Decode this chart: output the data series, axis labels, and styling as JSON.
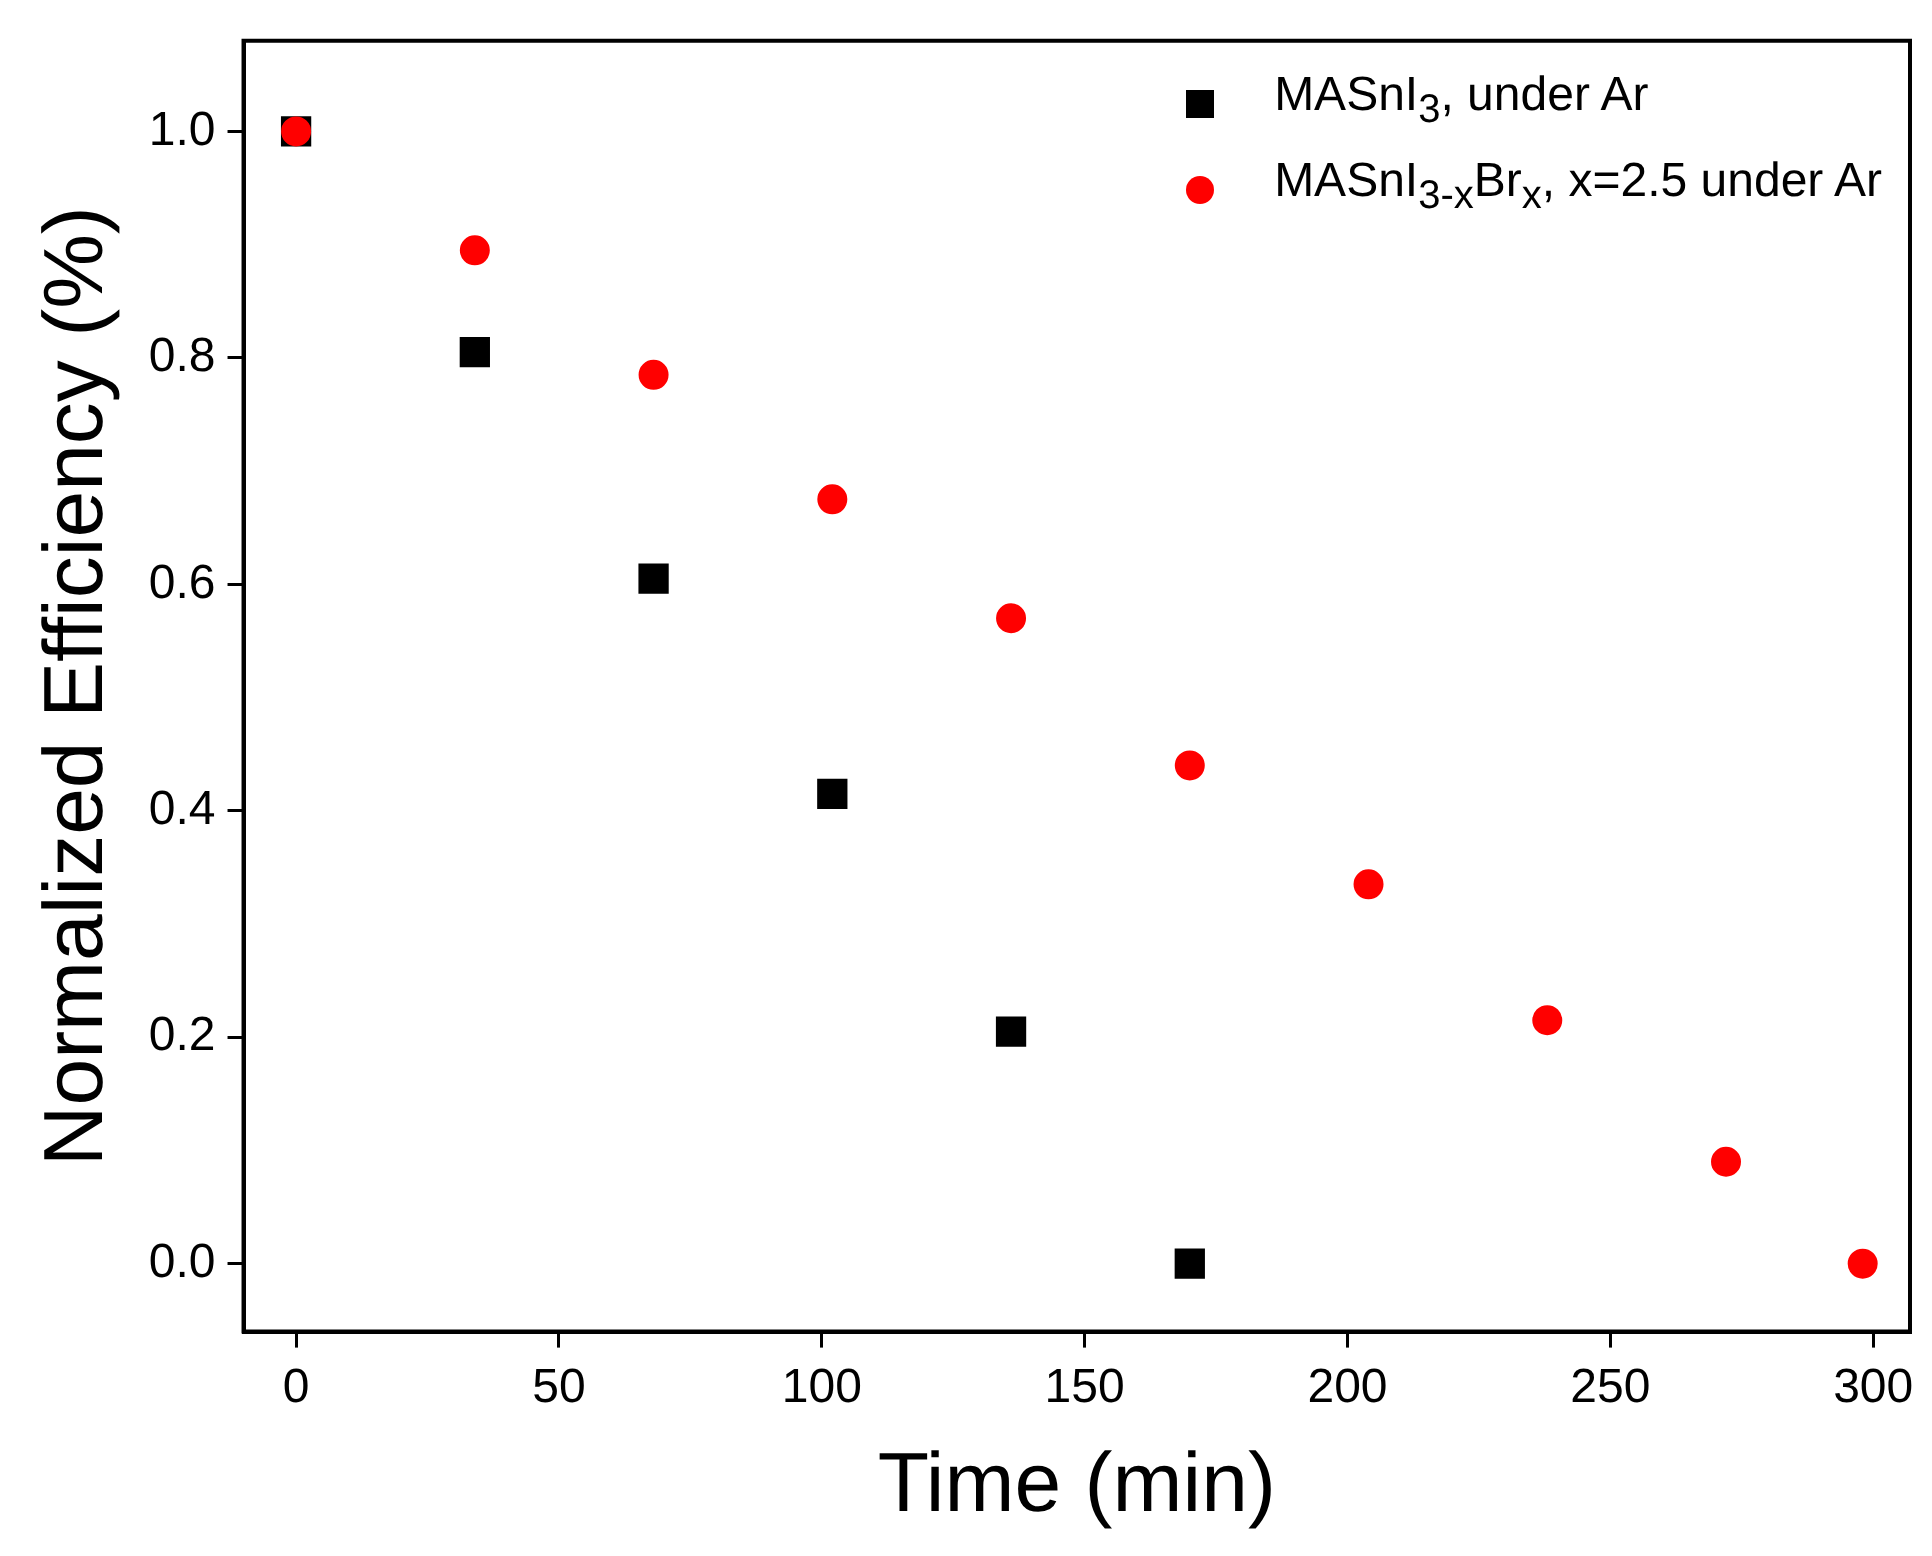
{
  "chart_data": {
    "type": "scatter",
    "xlabel": "Time (min)",
    "ylabel": "Normalized Efficiency (%)",
    "xlim": [
      -10,
      307
    ],
    "ylim": [
      -0.06,
      1.08
    ],
    "xticks": [
      0,
      50,
      100,
      150,
      200,
      250,
      300
    ],
    "yticks": [
      {
        "value": 0,
        "label": "0.0"
      },
      {
        "value": 0.2,
        "label": "0.2"
      },
      {
        "value": 0.4,
        "label": "0.4"
      },
      {
        "value": 0.6,
        "label": "0.6"
      },
      {
        "value": 0.8,
        "label": "0.8"
      },
      {
        "value": 1,
        "label": "1.0"
      }
    ],
    "grid": false,
    "legend": "top right",
    "series": [
      {
        "name": "MASnI$_{3}$, under Ar",
        "color": "#000000",
        "marker": "square",
        "x": [
          0,
          34,
          68,
          102,
          136,
          170
        ],
        "values": [
          1.0,
          0.805,
          0.605,
          0.415,
          0.205,
          0.0
        ]
      },
      {
        "name": "MASnI$_{3-x}$Br$_{x}$, x=2.5 under Ar",
        "color": "#ff0000",
        "marker": "circle",
        "x": [
          0,
          34,
          68,
          102,
          136,
          170,
          204,
          238,
          272,
          298
        ],
        "values": [
          1.0,
          0.895,
          0.785,
          0.675,
          0.57,
          0.44,
          0.335,
          0.215,
          0.09,
          0.0
        ]
      }
    ]
  }
}
